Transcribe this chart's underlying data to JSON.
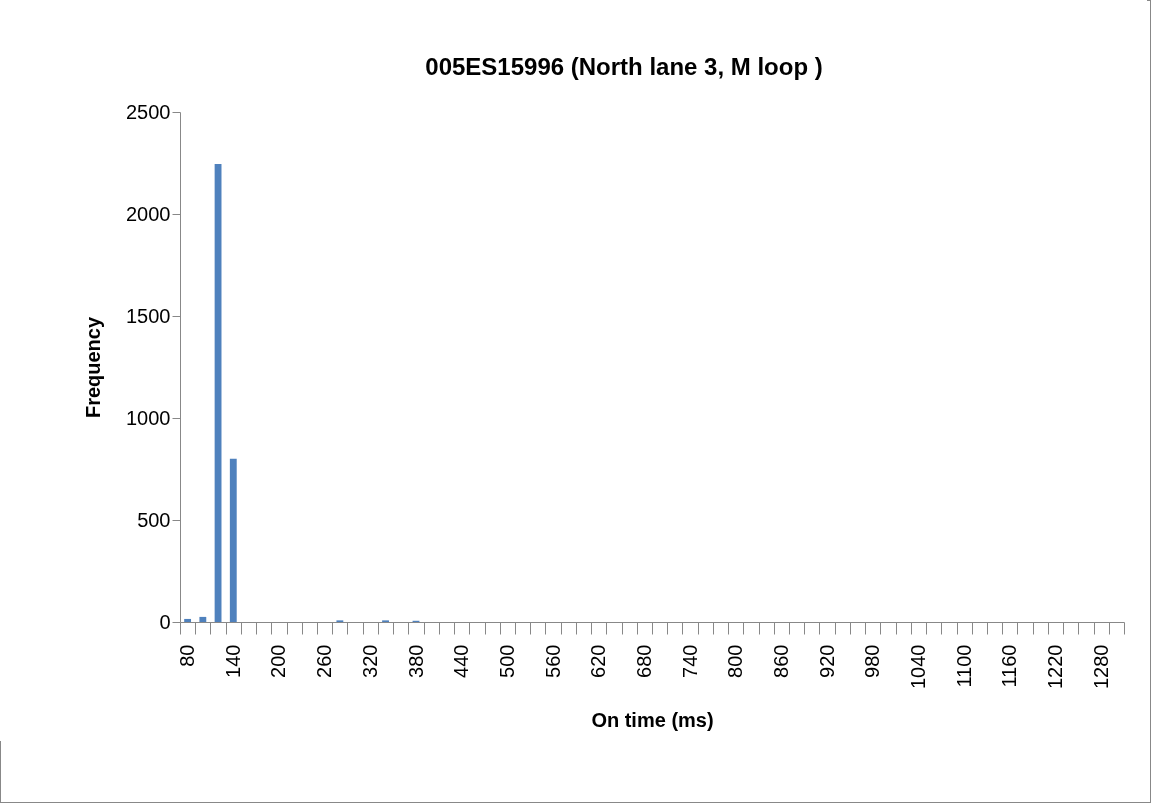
{
  "chart_data": {
    "type": "bar",
    "title": "005ES15996 (North lane 3, M loop )",
    "xlabel": "On time (ms)",
    "ylabel": "Frequency",
    "categories": [
      "80",
      null,
      null,
      "140",
      null,
      null,
      "200",
      null,
      null,
      "260",
      null,
      null,
      "320",
      null,
      null,
      "380",
      null,
      null,
      "440",
      null,
      null,
      "500",
      null,
      null,
      "560",
      null,
      null,
      "620",
      null,
      null,
      "680",
      null,
      null,
      "740",
      null,
      null,
      "800",
      null,
      null,
      "860",
      null,
      null,
      "920",
      null,
      null,
      "980",
      null,
      null,
      "1040",
      null,
      null,
      "1100",
      null,
      null,
      "1160",
      null,
      null,
      "1220",
      null,
      null,
      "1280",
      null
    ],
    "values": [
      15,
      25,
      2245,
      800,
      0,
      0,
      0,
      0,
      0,
      0,
      8,
      0,
      0,
      8,
      0,
      6,
      0,
      0,
      0,
      0,
      0,
      0,
      0,
      0,
      0,
      0,
      0,
      0,
      0,
      0,
      0,
      0,
      0,
      0,
      0,
      0,
      0,
      0,
      0,
      0,
      0,
      0,
      0,
      0,
      0,
      0,
      0,
      0,
      0,
      0,
      0,
      0,
      0,
      0,
      0,
      0,
      0,
      0,
      0,
      0,
      0,
      0
    ],
    "color": "#4f81bd",
    "ylim": [
      0,
      2500
    ],
    "yticks": [
      0,
      500,
      1000,
      1500,
      2000,
      2500
    ],
    "grid": false
  }
}
